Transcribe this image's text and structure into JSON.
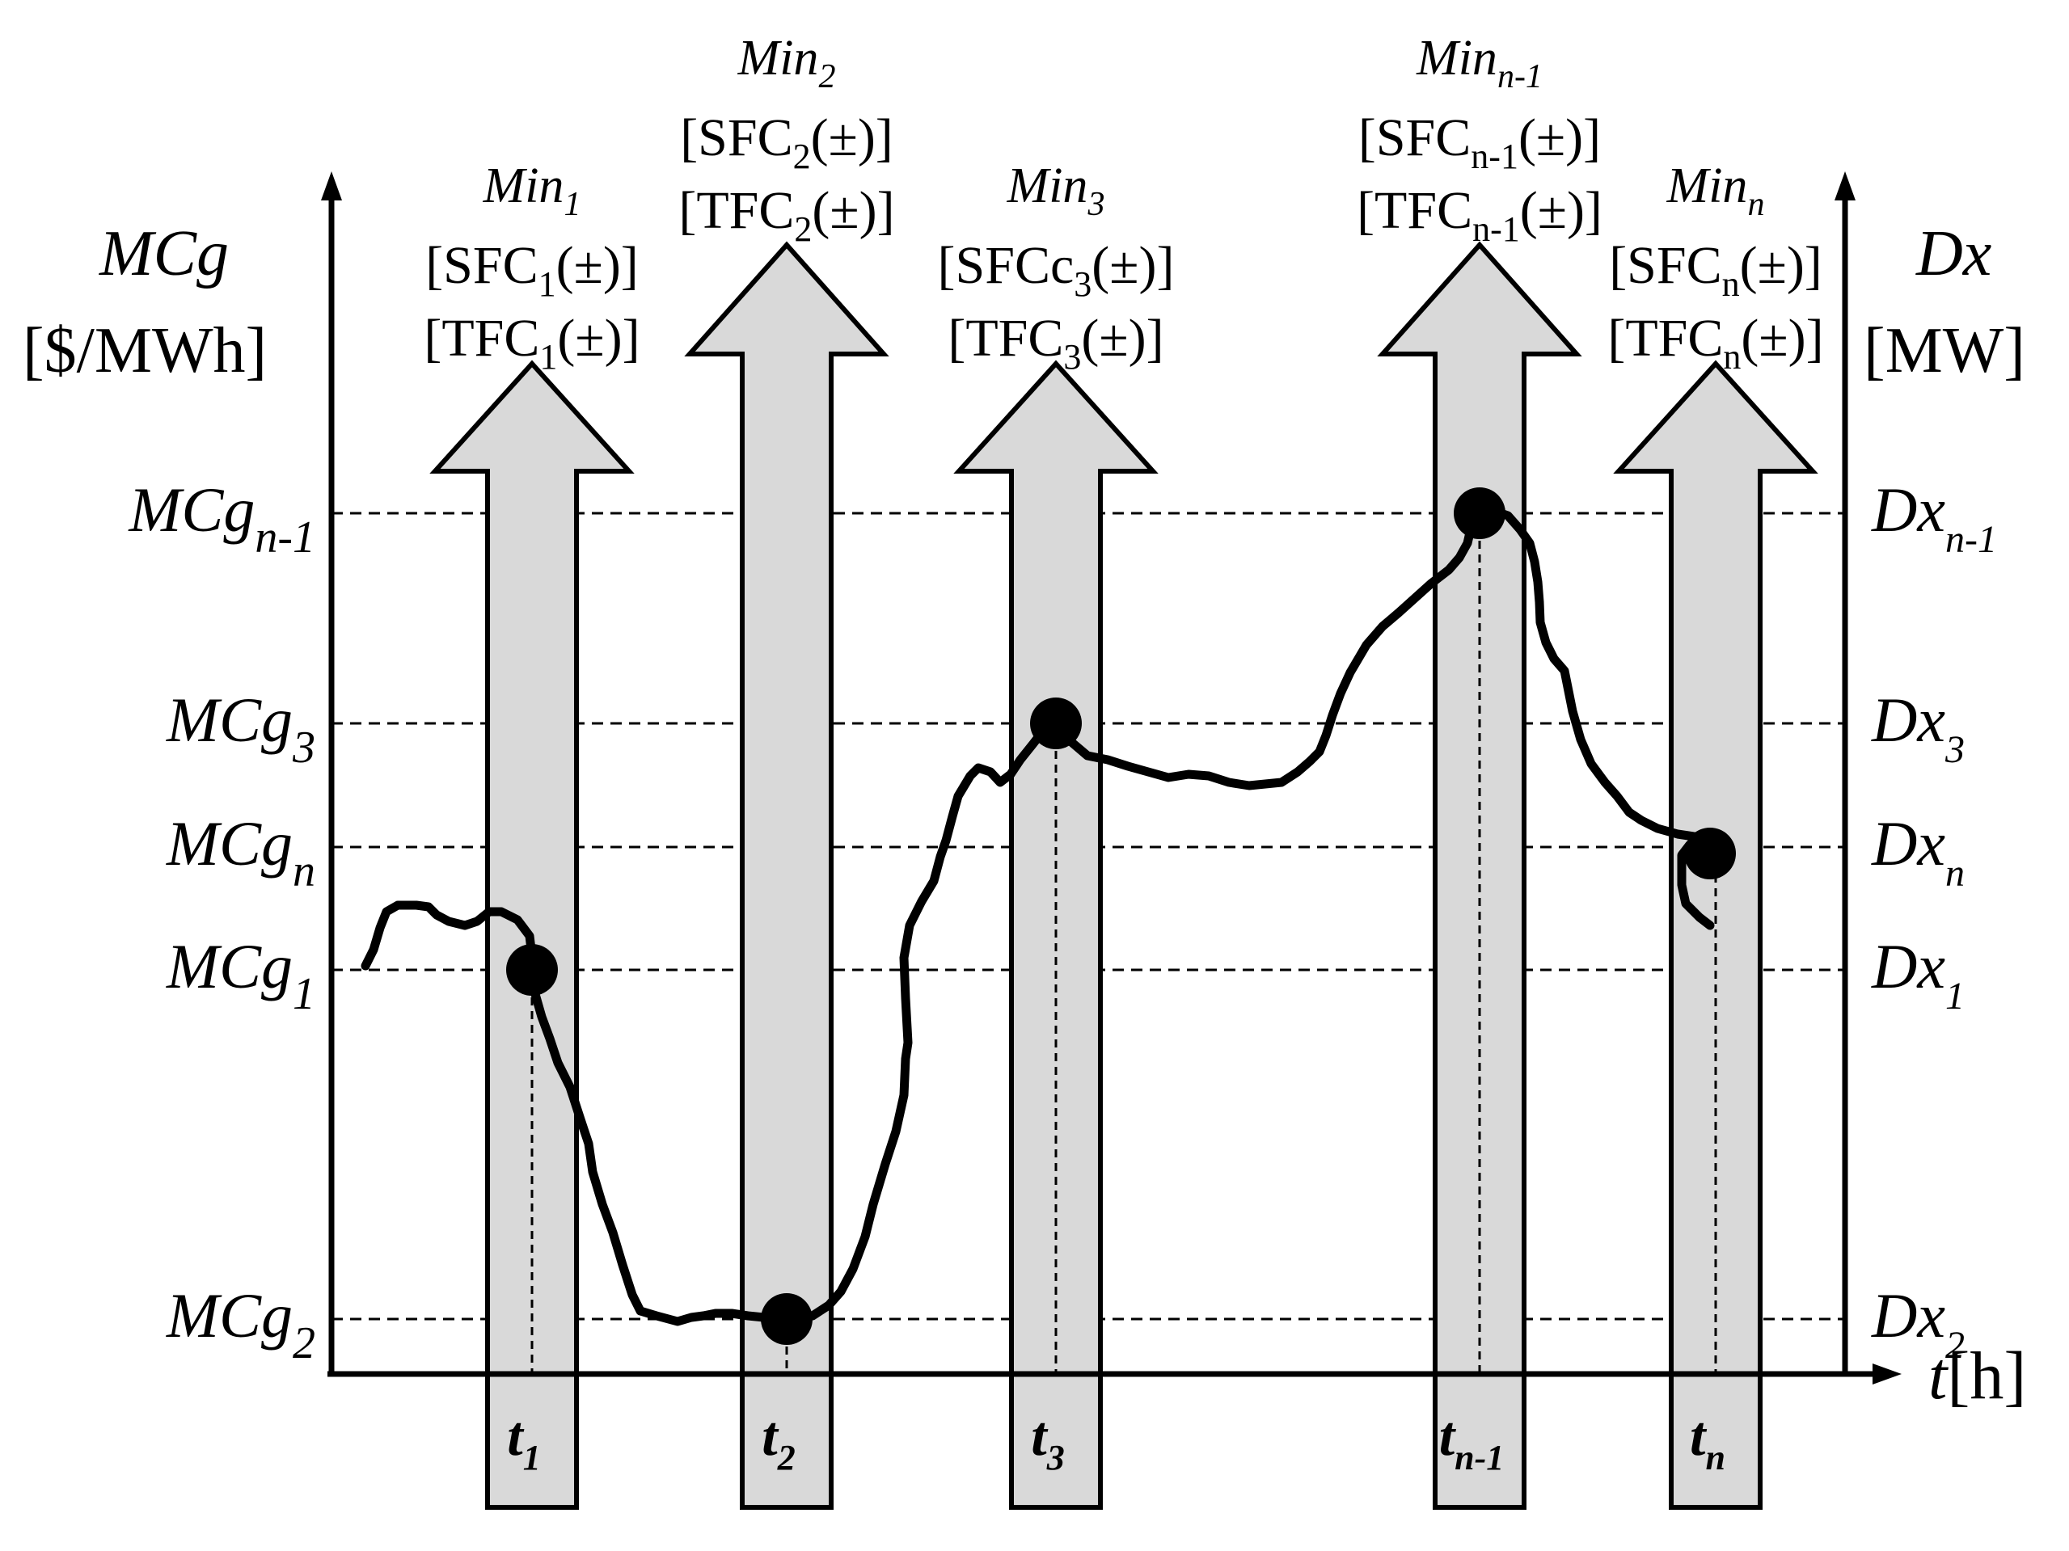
{
  "left_axis": {
    "symbol": "MCg",
    "unit": "[$/MWh]"
  },
  "right_axis": {
    "symbol": "Dx",
    "unit": "[MW]"
  },
  "time_axis": {
    "symbol": "t",
    "unit": "[h]"
  },
  "levels": [
    {
      "id": "n-1",
      "sub": "n-1"
    },
    {
      "id": "3",
      "sub": "3"
    },
    {
      "id": "n",
      "sub": "n"
    },
    {
      "id": "1",
      "sub": "1"
    },
    {
      "id": "2",
      "sub": "2"
    }
  ],
  "intervals": [
    {
      "id": "1",
      "time_sub": "1",
      "min_sub": "1",
      "sfc_prefix": "SFC",
      "sfc_sub": "1",
      "tfc_prefix": "TFC",
      "tfc_sub": "1",
      "pm": "(±)"
    },
    {
      "id": "2",
      "time_sub": "2",
      "min_sub": "2",
      "sfc_prefix": "SFC",
      "sfc_sub": "2",
      "tfc_prefix": "TFC",
      "tfc_sub": "2",
      "pm": "(±)"
    },
    {
      "id": "3",
      "time_sub": "3",
      "min_sub": "3",
      "sfc_prefix": "SFCc",
      "sfc_sub": "3",
      "tfc_prefix": "TFC",
      "tfc_sub": "3",
      "pm": "(±)"
    },
    {
      "id": "n-1",
      "time_sub": "n-1",
      "min_sub": "n-1",
      "sfc_prefix": "SFC",
      "sfc_sub": "n-1",
      "tfc_prefix": "TFC",
      "tfc_sub": "n-1",
      "pm": "(±)"
    },
    {
      "id": "n",
      "time_sub": "n",
      "min_sub": "n",
      "sfc_prefix": "SFC",
      "sfc_sub": "n",
      "tfc_prefix": "TFC",
      "tfc_sub": "n",
      "pm": "(±)"
    }
  ],
  "labels": {
    "min_word": "Min",
    "time_letter": "t",
    "open_bracket": "[",
    "close_bracket": "]"
  }
}
